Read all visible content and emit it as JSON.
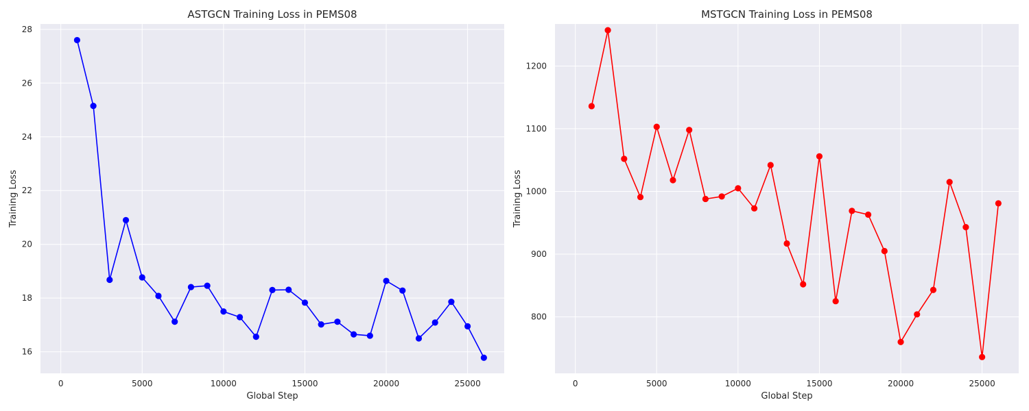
{
  "chart_data": [
    {
      "type": "line",
      "title": "ASTGCN Training Loss in PEMS08",
      "xlabel": "Global Step",
      "ylabel": "Training Loss",
      "xlim": [
        -1250,
        27250
      ],
      "ylim": [
        15.2,
        28.2
      ],
      "xticks": [
        0,
        5000,
        10000,
        15000,
        20000,
        25000
      ],
      "yticks": [
        16,
        18,
        20,
        22,
        24,
        26,
        28
      ],
      "grid": true,
      "color": "#0000ff",
      "x": [
        1000,
        2000,
        3000,
        4000,
        5000,
        6000,
        7000,
        8000,
        9000,
        10000,
        11000,
        12000,
        13000,
        14000,
        15000,
        16000,
        17000,
        18000,
        19000,
        20000,
        21000,
        22000,
        23000,
        24000,
        25000,
        26000
      ],
      "y": [
        27.6,
        25.15,
        18.68,
        20.9,
        18.77,
        18.08,
        17.12,
        18.41,
        18.46,
        17.5,
        17.29,
        16.56,
        18.3,
        18.31,
        17.83,
        17.02,
        17.12,
        16.65,
        16.6,
        18.64,
        18.28,
        16.5,
        17.09,
        17.86,
        16.95,
        15.78
      ]
    },
    {
      "type": "line",
      "title": "MSTGCN Training Loss in PEMS08",
      "xlabel": "Global Step",
      "ylabel": "Training Loss",
      "xlim": [
        -1250,
        27250
      ],
      "ylim": [
        710,
        1267
      ],
      "xticks": [
        0,
        5000,
        10000,
        15000,
        20000,
        25000
      ],
      "yticks": [
        800,
        900,
        1000,
        1100,
        1200
      ],
      "grid": true,
      "color": "#ff0000",
      "x": [
        1000,
        2000,
        3000,
        4000,
        5000,
        6000,
        7000,
        8000,
        9000,
        10000,
        11000,
        12000,
        13000,
        14000,
        15000,
        16000,
        17000,
        18000,
        19000,
        20000,
        21000,
        22000,
        23000,
        24000,
        25000,
        26000
      ],
      "y": [
        1136,
        1257,
        1052,
        991,
        1103,
        1018,
        1098,
        988,
        992,
        1005,
        973,
        1042,
        917,
        852,
        1056,
        825,
        969,
        963,
        905,
        760,
        804,
        843,
        1015,
        943,
        736,
        981
      ]
    }
  ]
}
